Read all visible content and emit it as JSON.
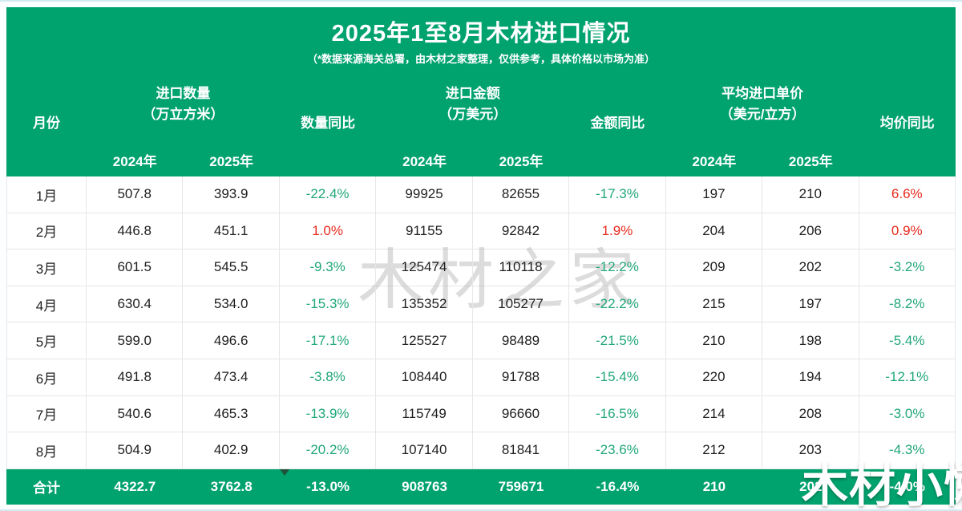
{
  "page": {
    "title": "2025年1至8月木材进口情况",
    "subtitle": "（*数据来源海关总署，由木材之家整理，仅供参考，具体价格以市场为准）",
    "watermark_center": "木材之家",
    "watermark_corner": "木材小懒"
  },
  "colors": {
    "header_green": "#00A26E",
    "yoy_negative_green": "#21A77C",
    "yoy_positive_red": "#E72A1E",
    "border_gray": "#E7E7E7"
  },
  "table": {
    "col_month": "月份",
    "groups": [
      {
        "line1": "进口数量",
        "line2": "（万立方米）"
      },
      {
        "line1": "进口金额",
        "line2": "（万美元）"
      },
      {
        "line1": "平均进口单价",
        "line2": "（美元/立方）"
      }
    ],
    "yoy_headers": [
      "数量同比",
      "金额同比",
      "均价同比"
    ],
    "year_2024": "2024年",
    "year_2025": "2025年",
    "rows": [
      [
        "1月",
        "507.8",
        "393.9",
        "-22.4%",
        "99925",
        "82655",
        "-17.3%",
        "197",
        "210",
        "6.6%"
      ],
      [
        "2月",
        "446.8",
        "451.1",
        "1.0%",
        "91155",
        "92842",
        "1.9%",
        "204",
        "206",
        "0.9%"
      ],
      [
        "3月",
        "601.5",
        "545.5",
        "-9.3%",
        "125474",
        "110118",
        "-12.2%",
        "209",
        "202",
        "-3.2%"
      ],
      [
        "4月",
        "630.4",
        "534.0",
        "-15.3%",
        "135352",
        "105277",
        "-22.2%",
        "215",
        "197",
        "-8.2%"
      ],
      [
        "5月",
        "599.0",
        "496.6",
        "-17.1%",
        "125527",
        "98489",
        "-21.5%",
        "210",
        "198",
        "-5.4%"
      ],
      [
        "6月",
        "491.8",
        "473.4",
        "-3.8%",
        "108440",
        "91788",
        "-15.4%",
        "220",
        "194",
        "-12.1%"
      ],
      [
        "7月",
        "540.6",
        "465.3",
        "-13.9%",
        "115749",
        "96660",
        "-16.5%",
        "214",
        "208",
        "-3.0%"
      ],
      [
        "8月",
        "504.9",
        "402.9",
        "-20.2%",
        "107140",
        "81841",
        "-23.6%",
        "212",
        "203",
        "-4.3%"
      ]
    ],
    "total": [
      "合计",
      "4322.7",
      "3762.8",
      "-13.0%",
      "908763",
      "759671",
      "-16.4%",
      "210",
      "202",
      "-4.0%"
    ]
  }
}
